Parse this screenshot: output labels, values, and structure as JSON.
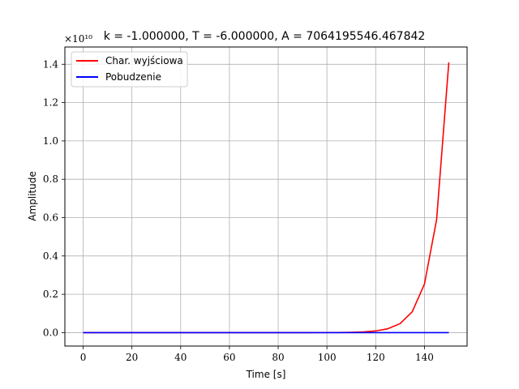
{
  "chart_data": {
    "type": "line",
    "title": "k = -1.000000,  T = -6.000000,  A = 7064195546.467842",
    "xlabel": "Time [s]",
    "ylabel": "Amplitude",
    "y_offset_text": "×10¹⁰",
    "xlim": [
      -7.5,
      157.5
    ],
    "ylim": [
      -0.07,
      1.49
    ],
    "y_units_multiplier": 10000000000,
    "xticks": [
      0,
      20,
      40,
      60,
      80,
      100,
      120,
      140
    ],
    "xtick_labels": [
      "0",
      "20",
      "40",
      "60",
      "80",
      "100",
      "120",
      "140"
    ],
    "yticks": [
      0.0,
      0.2,
      0.4,
      0.6,
      0.8,
      1.0,
      1.2,
      1.4
    ],
    "ytick_labels": [
      "0.0",
      "0.2",
      "0.4",
      "0.6",
      "0.8",
      "1.0",
      "1.2",
      "1.4"
    ],
    "grid": true,
    "legend_position": "top-left",
    "series": [
      {
        "name": "Char. wyjściowa",
        "color": "#ff0000",
        "x": [
          0,
          20,
          40,
          60,
          80,
          90,
          100,
          105,
          110,
          115,
          120,
          125,
          130,
          135,
          140,
          145,
          150
        ],
        "y": [
          0.0,
          0.0,
          0.0,
          0.0,
          0.0,
          0.0,
          0.0003,
          0.0007,
          0.0016,
          0.0038,
          0.0088,
          0.0202,
          0.047,
          0.109,
          0.253,
          0.59,
          1.41
        ]
      },
      {
        "name": "Pobudzenie",
        "color": "#0000ff",
        "x": [
          0,
          150
        ],
        "y": [
          0.0,
          0.0
        ]
      }
    ]
  }
}
